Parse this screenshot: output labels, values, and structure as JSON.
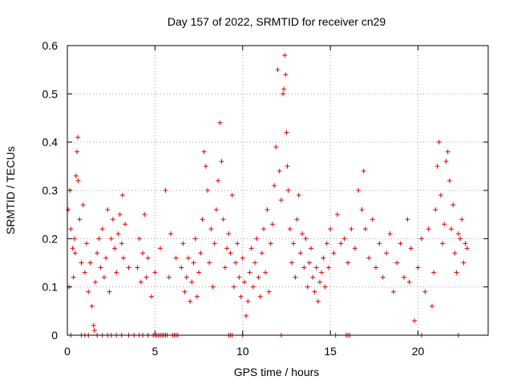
{
  "chart_data": {
    "type": "scatter",
    "title": "Day 157 of 2022, SRMTID for receiver cn29",
    "xlabel": "GPS time / hours",
    "ylabel": "SRMTID / TECUs",
    "xlim": [
      0,
      24
    ],
    "ylim": [
      0,
      0.6
    ],
    "xticks": [
      0,
      5,
      10,
      15,
      20
    ],
    "yticks": [
      0,
      0.1,
      0.2,
      0.3,
      0.4,
      0.5,
      0.6
    ],
    "xtick_labels": [
      "0",
      "5",
      "10",
      "15",
      "20"
    ],
    "ytick_labels": [
      "0",
      "0.1",
      "0.2",
      "0.3",
      "0.4",
      "0.5",
      "0.6"
    ],
    "grid": true,
    "marker": "plus",
    "color": "#e00000",
    "series": [
      {
        "name": "SRMTID",
        "points": [
          [
            0.05,
            0.26
          ],
          [
            0.1,
            0.1
          ],
          [
            0.15,
            0.3
          ],
          [
            0.2,
            0.22
          ],
          [
            0.3,
            0.18
          ],
          [
            0.35,
            0.12
          ],
          [
            0.4,
            0.2
          ],
          [
            0.45,
            0.17
          ],
          [
            0.5,
            0.33
          ],
          [
            0.55,
            0.38
          ],
          [
            0.6,
            0.41
          ],
          [
            0.62,
            0.32
          ],
          [
            0.7,
            0.24
          ],
          [
            0.8,
            0.15
          ],
          [
            0.9,
            0.27
          ],
          [
            1.0,
            0.13
          ],
          [
            1.1,
            0.19
          ],
          [
            1.2,
            0.09
          ],
          [
            1.3,
            0.15
          ],
          [
            1.4,
            0.06
          ],
          [
            1.5,
            0.02
          ],
          [
            1.55,
            0.01
          ],
          [
            1.6,
            0.11
          ],
          [
            1.7,
            0.17
          ],
          [
            1.8,
            0.2
          ],
          [
            1.9,
            0.14
          ],
          [
            2.0,
            0.22
          ],
          [
            2.1,
            0.12
          ],
          [
            2.2,
            0.16
          ],
          [
            2.3,
            0.26
          ],
          [
            2.4,
            0.09
          ],
          [
            2.5,
            0.2
          ],
          [
            2.6,
            0.24
          ],
          [
            2.7,
            0.18
          ],
          [
            2.8,
            0.13
          ],
          [
            2.9,
            0.21
          ],
          [
            3.0,
            0.25
          ],
          [
            3.1,
            0.19
          ],
          [
            3.15,
            0.29
          ],
          [
            3.2,
            0.16
          ],
          [
            3.3,
            0.23
          ],
          [
            3.5,
            0.14
          ],
          [
            4.0,
            0.14
          ],
          [
            4.1,
            0.2
          ],
          [
            4.2,
            0.11
          ],
          [
            4.3,
            0.17
          ],
          [
            4.4,
            0.25
          ],
          [
            4.5,
            0.12
          ],
          [
            4.6,
            0.16
          ],
          [
            4.8,
            0.08
          ],
          [
            5.0,
            0.13
          ],
          [
            5.3,
            0.18
          ],
          [
            5.6,
            0.3
          ],
          [
            5.8,
            0.12
          ],
          [
            5.9,
            0.21
          ],
          [
            6.2,
            0.16
          ],
          [
            6.5,
            0.14
          ],
          [
            6.6,
            0.19
          ],
          [
            6.7,
            0.09
          ],
          [
            6.8,
            0.12
          ],
          [
            6.9,
            0.16
          ],
          [
            7.0,
            0.07
          ],
          [
            7.1,
            0.11
          ],
          [
            7.2,
            0.15
          ],
          [
            7.3,
            0.2
          ],
          [
            7.4,
            0.08
          ],
          [
            7.5,
            0.13
          ],
          [
            7.6,
            0.17
          ],
          [
            7.7,
            0.24
          ],
          [
            7.8,
            0.38
          ],
          [
            7.9,
            0.35
          ],
          [
            8.0,
            0.3
          ],
          [
            8.1,
            0.15
          ],
          [
            8.2,
            0.22
          ],
          [
            8.3,
            0.1
          ],
          [
            8.4,
            0.19
          ],
          [
            8.5,
            0.26
          ],
          [
            8.6,
            0.32
          ],
          [
            8.7,
            0.44
          ],
          [
            8.8,
            0.36
          ],
          [
            8.9,
            0.24
          ],
          [
            9.0,
            0.14
          ],
          [
            9.1,
            0.18
          ],
          [
            9.2,
            0.21
          ],
          [
            9.3,
            0.17
          ],
          [
            9.4,
            0.29
          ],
          [
            9.5,
            0.1
          ],
          [
            9.6,
            0.15
          ],
          [
            9.7,
            0.19
          ],
          [
            9.8,
            0.12
          ],
          [
            9.9,
            0.08
          ],
          [
            10.0,
            0.16
          ],
          [
            10.1,
            0.11
          ],
          [
            10.2,
            0.04
          ],
          [
            10.3,
            0.07
          ],
          [
            10.4,
            0.13
          ],
          [
            10.5,
            0.18
          ],
          [
            10.6,
            0.1
          ],
          [
            10.7,
            0.15
          ],
          [
            10.8,
            0.2
          ],
          [
            10.9,
            0.12
          ],
          [
            11.0,
            0.08
          ],
          [
            11.1,
            0.17
          ],
          [
            11.2,
            0.22
          ],
          [
            11.3,
            0.13
          ],
          [
            11.4,
            0.26
          ],
          [
            11.5,
            0.09
          ],
          [
            11.6,
            0.19
          ],
          [
            11.7,
            0.23
          ],
          [
            11.8,
            0.31
          ],
          [
            11.9,
            0.39
          ],
          [
            12.0,
            0.55
          ],
          [
            12.1,
            0.34
          ],
          [
            12.2,
            0.28
          ],
          [
            12.3,
            0.5
          ],
          [
            12.35,
            0.51
          ],
          [
            12.4,
            0.58
          ],
          [
            12.45,
            0.54
          ],
          [
            12.5,
            0.42
          ],
          [
            12.55,
            0.35
          ],
          [
            12.6,
            0.3
          ],
          [
            12.7,
            0.22
          ],
          [
            12.8,
            0.15
          ],
          [
            12.9,
            0.19
          ],
          [
            13.0,
            0.12
          ],
          [
            13.1,
            0.24
          ],
          [
            13.2,
            0.29
          ],
          [
            13.3,
            0.17
          ],
          [
            13.4,
            0.21
          ],
          [
            13.5,
            0.14
          ],
          [
            13.6,
            0.2
          ],
          [
            13.7,
            0.1
          ],
          [
            13.8,
            0.15
          ],
          [
            13.9,
            0.18
          ],
          [
            14.0,
            0.12
          ],
          [
            14.1,
            0.09
          ],
          [
            14.2,
            0.14
          ],
          [
            14.3,
            0.07
          ],
          [
            14.4,
            0.11
          ],
          [
            14.5,
            0.13
          ],
          [
            14.6,
            0.16
          ],
          [
            14.7,
            0.1
          ],
          [
            14.8,
            0.19
          ],
          [
            14.9,
            0.14
          ],
          [
            15.0,
            0.22
          ],
          [
            15.2,
            0.17
          ],
          [
            15.4,
            0.25
          ],
          [
            15.6,
            0.19
          ],
          [
            15.8,
            0.2
          ],
          [
            16.0,
            0.15
          ],
          [
            16.2,
            0.22
          ],
          [
            16.4,
            0.18
          ],
          [
            16.6,
            0.3
          ],
          [
            16.8,
            0.26
          ],
          [
            16.9,
            0.34
          ],
          [
            17.0,
            0.22
          ],
          [
            17.2,
            0.16
          ],
          [
            17.4,
            0.24
          ],
          [
            17.6,
            0.14
          ],
          [
            17.8,
            0.19
          ],
          [
            18.0,
            0.12
          ],
          [
            18.2,
            0.17
          ],
          [
            18.4,
            0.21
          ],
          [
            18.6,
            0.09
          ],
          [
            18.8,
            0.15
          ],
          [
            19.0,
            0.19
          ],
          [
            19.2,
            0.12
          ],
          [
            19.4,
            0.24
          ],
          [
            19.5,
            0.11
          ],
          [
            19.6,
            0.18
          ],
          [
            19.8,
            0.03
          ],
          [
            20.0,
            0.14
          ],
          [
            20.2,
            0.2
          ],
          [
            20.4,
            0.09
          ],
          [
            20.6,
            0.22
          ],
          [
            20.8,
            0.06
          ],
          [
            20.9,
            0.13
          ],
          [
            21.0,
            0.26
          ],
          [
            21.1,
            0.35
          ],
          [
            21.2,
            0.4
          ],
          [
            21.3,
            0.29
          ],
          [
            21.4,
            0.19
          ],
          [
            21.5,
            0.23
          ],
          [
            21.6,
            0.36
          ],
          [
            21.7,
            0.38
          ],
          [
            21.8,
            0.32
          ],
          [
            21.9,
            0.22
          ],
          [
            22.0,
            0.27
          ],
          [
            22.1,
            0.17
          ],
          [
            22.2,
            0.13
          ],
          [
            22.3,
            0.21
          ],
          [
            22.4,
            0.2
          ],
          [
            22.5,
            0.24
          ],
          [
            22.6,
            0.15
          ],
          [
            22.7,
            0.19
          ],
          [
            22.8,
            0.18
          ],
          [
            0.2,
            0
          ],
          [
            0.8,
            0
          ],
          [
            1.0,
            0
          ],
          [
            1.2,
            0
          ],
          [
            1.7,
            0
          ],
          [
            2.0,
            0
          ],
          [
            2.3,
            0
          ],
          [
            2.5,
            0
          ],
          [
            2.8,
            0
          ],
          [
            3.1,
            0
          ],
          [
            3.5,
            0
          ],
          [
            3.8,
            0
          ],
          [
            4.1,
            0
          ],
          [
            4.3,
            0
          ],
          [
            4.6,
            0
          ],
          [
            4.9,
            0
          ],
          [
            5.0,
            0
          ],
          [
            5.1,
            0
          ],
          [
            5.2,
            0
          ],
          [
            5.3,
            0
          ],
          [
            5.4,
            0
          ],
          [
            5.5,
            0
          ],
          [
            5.6,
            0
          ],
          [
            5.7,
            0
          ],
          [
            6.0,
            0
          ],
          [
            6.1,
            0
          ],
          [
            6.2,
            0
          ],
          [
            6.3,
            0
          ],
          [
            9.2,
            0
          ],
          [
            9.3,
            0
          ],
          [
            9.4,
            0
          ],
          [
            10.0,
            0
          ],
          [
            12.2,
            0
          ],
          [
            15.3,
            0
          ],
          [
            15.9,
            0
          ],
          [
            16.0,
            0
          ],
          [
            16.1,
            0
          ],
          [
            20.2,
            0
          ],
          [
            22.3,
            0
          ]
        ]
      }
    ]
  }
}
